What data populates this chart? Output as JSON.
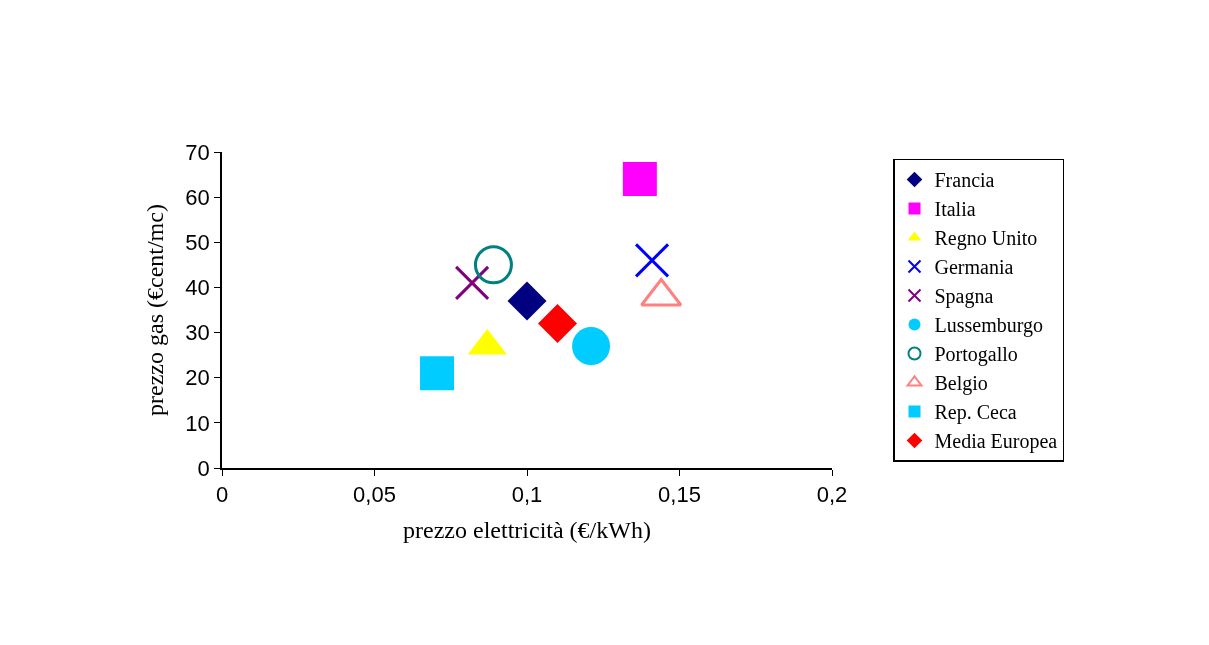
{
  "chart_data": {
    "type": "scatter",
    "xlabel": "prezzo elettricità (€/kWh)",
    "ylabel": "prezzo gas (€cent/mc)",
    "xlim": [
      0,
      0.2
    ],
    "xticks": [
      {
        "value": 0,
        "label": "0"
      },
      {
        "value": 0.05,
        "label": "0,05"
      },
      {
        "value": 0.1,
        "label": "0,1"
      },
      {
        "value": 0.15,
        "label": "0,15"
      },
      {
        "value": 0.2,
        "label": "0,2"
      }
    ],
    "ylim": [
      0,
      70
    ],
    "yticks": [
      0,
      10,
      20,
      30,
      40,
      50,
      60,
      70
    ],
    "legend": "right",
    "series": [
      {
        "name": "Francia",
        "color": "#000080",
        "marker": "diamond",
        "x": [
          0.1
        ],
        "values": [
          37
        ]
      },
      {
        "name": "Italia",
        "color": "#ff00ff",
        "marker": "square",
        "x": [
          0.137
        ],
        "values": [
          64
        ]
      },
      {
        "name": "Regno Unito",
        "color": "#ffff00",
        "marker": "triangle",
        "x": [
          0.087
        ],
        "values": [
          27
        ]
      },
      {
        "name": "Germania",
        "color": "#0000ff",
        "marker": "cross",
        "x": [
          0.141
        ],
        "values": [
          46
        ]
      },
      {
        "name": "Spagna",
        "color": "#800080",
        "marker": "cross",
        "x": [
          0.082
        ],
        "values": [
          41
        ]
      },
      {
        "name": "Lussemburgo",
        "color": "#00ccff",
        "marker": "circle",
        "x": [
          0.121
        ],
        "values": [
          27
        ]
      },
      {
        "name": "Portogallo",
        "color": "#008080",
        "marker": "circle-open",
        "x": [
          0.089
        ],
        "values": [
          45
        ]
      },
      {
        "name": "Belgio",
        "color": "#ff8080",
        "marker": "triangle-open",
        "x": [
          0.144
        ],
        "values": [
          38
        ]
      },
      {
        "name": "Rep. Ceca",
        "color": "#00ccff",
        "marker": "square",
        "x": [
          0.0705
        ],
        "values": [
          21
        ]
      },
      {
        "name": "Media Europea",
        "color": "#ff0000",
        "marker": "diamond",
        "x": [
          0.11
        ],
        "values": [
          32
        ]
      }
    ]
  }
}
